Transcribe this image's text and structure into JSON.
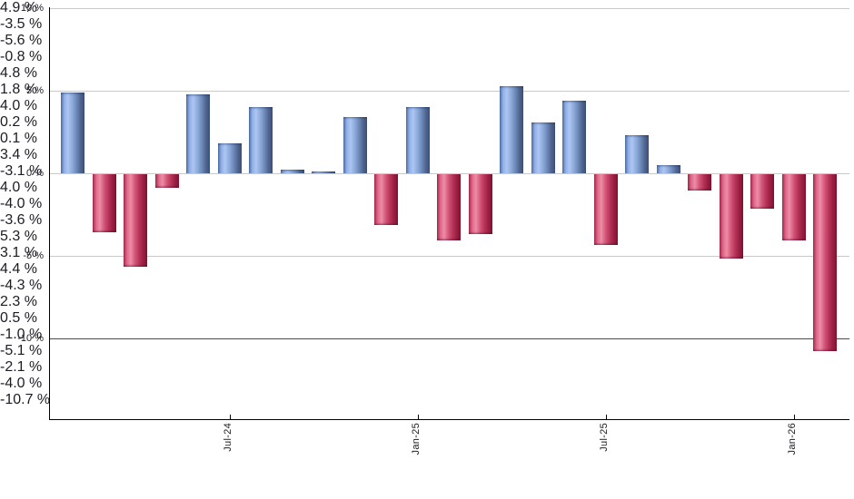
{
  "chart_data": {
    "type": "bar",
    "title": "",
    "xlabel": "",
    "ylabel": "",
    "unit": "%",
    "grid": true,
    "legend": false,
    "bars": [
      {
        "value": 4.9,
        "label": "4.9 %"
      },
      {
        "value": -3.5,
        "label": "-3.5 %"
      },
      {
        "value": -5.6,
        "label": "-5.6 %"
      },
      {
        "value": -0.8,
        "label": "-0.8 %"
      },
      {
        "value": 4.8,
        "label": "4.8 %"
      },
      {
        "value": 1.8,
        "label": "1.8 %"
      },
      {
        "value": 4.0,
        "label": "4.0 %"
      },
      {
        "value": 0.2,
        "label": "0.2 %"
      },
      {
        "value": 0.1,
        "label": "0.1 %"
      },
      {
        "value": 3.4,
        "label": "3.4 %"
      },
      {
        "value": -3.1,
        "label": "-3.1 %"
      },
      {
        "value": 4.0,
        "label": "4.0 %"
      },
      {
        "value": -4.0,
        "label": "-4.0 %"
      },
      {
        "value": -3.6,
        "label": "-3.6 %"
      },
      {
        "value": 5.3,
        "label": "5.3 %"
      },
      {
        "value": 3.1,
        "label": "3.1 %"
      },
      {
        "value": 4.4,
        "label": "4.4 %"
      },
      {
        "value": -4.3,
        "label": "-4.3 %"
      },
      {
        "value": 2.3,
        "label": "2.3 %"
      },
      {
        "value": 0.5,
        "label": "0.5 %"
      },
      {
        "value": -1.0,
        "label": "-1.0 %"
      },
      {
        "value": -5.1,
        "label": "-5.1 %"
      },
      {
        "value": -2.1,
        "label": "-2.1 %"
      },
      {
        "value": -4.0,
        "label": "-4.0 %"
      },
      {
        "value": -10.7,
        "label": "-10.7 %"
      }
    ],
    "y_axis": {
      "max": 10,
      "min": -14.9,
      "ticks": [
        {
          "value": 10,
          "label": "10 %"
        },
        {
          "value": 5,
          "label": "5 %"
        },
        {
          "value": 0,
          "label": "0 %"
        },
        {
          "value": -5,
          "label": "-5 %"
        },
        {
          "value": -10,
          "label": "-10 %"
        }
      ]
    },
    "x_axis": {
      "ticks": [
        {
          "bar_index": 5,
          "label": "Jul-24"
        },
        {
          "bar_index": 11,
          "label": "Jan-25"
        },
        {
          "bar_index": 17,
          "label": "Jul-25"
        },
        {
          "bar_index": 23,
          "label": "Jan-26"
        }
      ]
    },
    "reference_line": {
      "value": -10,
      "color": "#008000"
    },
    "colors": {
      "positive": "#7d9fd6",
      "negative": "#cf3a62",
      "gridline": "#c9c9c9",
      "axis": "#000000",
      "text": "#1c1c24",
      "background": "#ffffff"
    }
  }
}
